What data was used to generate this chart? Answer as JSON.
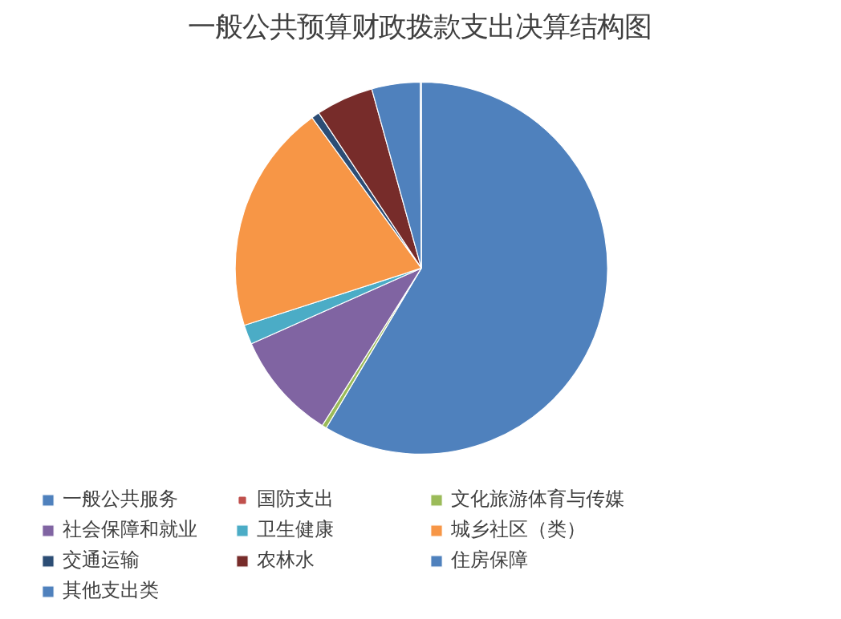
{
  "chart_data": {
    "type": "pie",
    "title": "一般公共预算财政拨款支出决算结构图",
    "categories": [
      "一般公共服务",
      "国防支出",
      "文化旅游体育与传媒",
      "社会保障和就业",
      "卫生健康",
      "城乡社区（类）",
      "交通运输",
      "农林水",
      "住房保障",
      "其他支出类"
    ],
    "values": [
      58.6,
      null,
      0.4,
      9.4,
      1.7,
      20.0,
      0.7,
      5.0,
      4.2,
      0.1
    ],
    "colors": [
      "#4f81bd",
      "#c0504d",
      "#9bbb59",
      "#8064a2",
      "#4bacc6",
      "#f79646",
      "#2c4d75",
      "#772c2a",
      "#4f81bd",
      "#4f81bd"
    ],
    "legend": "bottom"
  }
}
